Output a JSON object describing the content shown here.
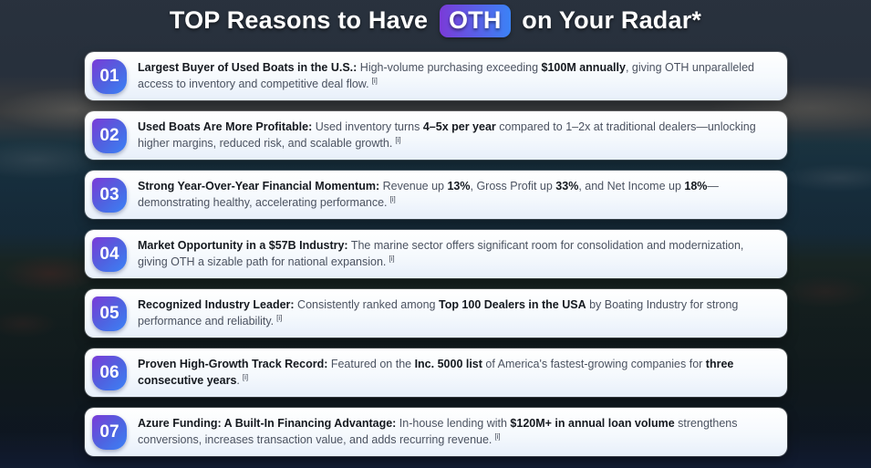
{
  "title": {
    "pre": "TOP Reasons to Have",
    "ticker": "OTH",
    "post": "on Your Radar*"
  },
  "colors": {
    "badge_gradient_start": "#7a3bd8",
    "badge_gradient_end": "#3b82f6",
    "card_bg": "#ffffff",
    "body_text": "#4b5260",
    "bold_text": "#15191f"
  },
  "cards": [
    {
      "number": "01",
      "citation": "[i]",
      "segments": [
        {
          "t": "Largest Buyer of Used Boats in the U.S.:",
          "b": true
        },
        {
          "t": " High-volume purchasing exceeding ",
          "b": false
        },
        {
          "t": "$100M annually",
          "b": true
        },
        {
          "t": ", giving OTH unparalleled access to inventory and competitive deal flow.",
          "b": false
        }
      ]
    },
    {
      "number": "02",
      "citation": "[i]",
      "segments": [
        {
          "t": "Used Boats Are More Profitable:",
          "b": true
        },
        {
          "t": " Used inventory turns ",
          "b": false
        },
        {
          "t": "4–5x per year",
          "b": true
        },
        {
          "t": " compared to 1–2x at traditional dealers—unlocking higher margins, reduced risk, and scalable growth.",
          "b": false
        }
      ]
    },
    {
      "number": "03",
      "citation": "[i]",
      "segments": [
        {
          "t": "Strong Year-Over-Year Financial Momentum:",
          "b": true
        },
        {
          "t": " Revenue up ",
          "b": false
        },
        {
          "t": "13%",
          "b": true
        },
        {
          "t": ", Gross Profit up ",
          "b": false
        },
        {
          "t": "33%",
          "b": true
        },
        {
          "t": ", and Net Income up ",
          "b": false
        },
        {
          "t": "18%",
          "b": true
        },
        {
          "t": "—demonstrating healthy, accelerating performance.",
          "b": false
        }
      ]
    },
    {
      "number": "04",
      "citation": "[i]",
      "segments": [
        {
          "t": "Market Opportunity in a $57B Industry:",
          "b": true
        },
        {
          "t": " The marine sector offers significant room for consolidation and modernization, giving OTH a sizable path for national expansion.",
          "b": false
        }
      ]
    },
    {
      "number": "05",
      "citation": "[i]",
      "segments": [
        {
          "t": "Recognized Industry Leader:",
          "b": true
        },
        {
          "t": " Consistently ranked among ",
          "b": false
        },
        {
          "t": "Top 100 Dealers in the USA",
          "b": true
        },
        {
          "t": " by Boating Industry for strong performance and reliability.",
          "b": false
        }
      ]
    },
    {
      "number": "06",
      "citation": "[i]",
      "segments": [
        {
          "t": "Proven High-Growth Track Record:",
          "b": true
        },
        {
          "t": " Featured on the ",
          "b": false
        },
        {
          "t": "Inc. 5000 list",
          "b": true
        },
        {
          "t": " of America's fastest-growing companies for ",
          "b": false
        },
        {
          "t": "three consecutive years",
          "b": true
        },
        {
          "t": ".",
          "b": false
        }
      ]
    },
    {
      "number": "07",
      "citation": "[i]",
      "segments": [
        {
          "t": "Azure Funding: A Built-In Financing Advantage:",
          "b": true
        },
        {
          "t": " In-house lending with ",
          "b": false
        },
        {
          "t": "$120M+ in annual loan volume",
          "b": true
        },
        {
          "t": " strengthens conversions, increases transaction value, and adds recurring revenue.",
          "b": false
        }
      ]
    }
  ]
}
